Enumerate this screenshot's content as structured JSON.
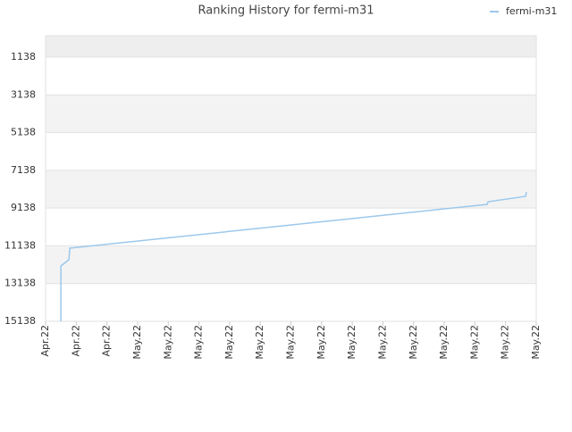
{
  "chart_data": {
    "type": "line",
    "title": "Ranking History for fermi-m31",
    "x": [
      0.5,
      0.5,
      0.76,
      0.79,
      14.4,
      14.43,
      15.65,
      15.68
    ],
    "series": [
      {
        "name": "fermi-m31",
        "color": "#9cc8ec",
        "values": [
          15138,
          12206,
          11875,
          11260,
          8943,
          8801,
          8517,
          8280
        ]
      }
    ],
    "xlim": [
      0,
      16
    ],
    "xticks": [
      {
        "value": 0,
        "label": "Apr.22"
      },
      {
        "value": 1,
        "label": "Apr.22"
      },
      {
        "value": 2,
        "label": "Apr.22"
      },
      {
        "value": 3,
        "label": "May.22"
      },
      {
        "value": 4,
        "label": "May.22"
      },
      {
        "value": 5,
        "label": "May.22"
      },
      {
        "value": 6,
        "label": "May.22"
      },
      {
        "value": 7,
        "label": "May.22"
      },
      {
        "value": 8,
        "label": "May.22"
      },
      {
        "value": 9,
        "label": "May.22"
      },
      {
        "value": 10,
        "label": "May.22"
      },
      {
        "value": 11,
        "label": "May.22"
      },
      {
        "value": 12,
        "label": "May.22"
      },
      {
        "value": 13,
        "label": "May.22"
      },
      {
        "value": 14,
        "label": "May.22"
      },
      {
        "value": 15,
        "label": "May.22"
      },
      {
        "value": 16,
        "label": "May.22"
      }
    ],
    "ylim": [
      3,
      15138
    ],
    "y_inverted": true,
    "yticks": [
      1138,
      3138,
      5138,
      7138,
      9138,
      11138,
      13138,
      15138
    ],
    "grid": true
  }
}
